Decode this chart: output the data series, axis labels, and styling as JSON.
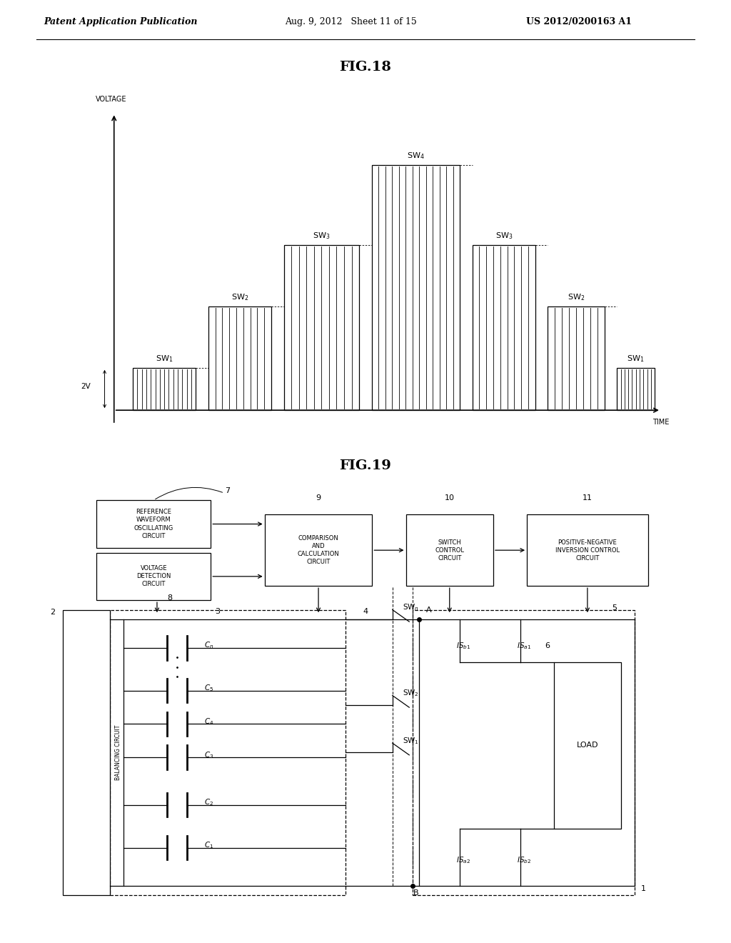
{
  "header_left": "Patent Application Publication",
  "header_mid": "Aug. 9, 2012   Sheet 11 of 15",
  "header_right": "US 2012/0200163 A1",
  "fig18_title": "FIG.18",
  "fig19_title": "FIG.19",
  "bg_color": "#ffffff"
}
